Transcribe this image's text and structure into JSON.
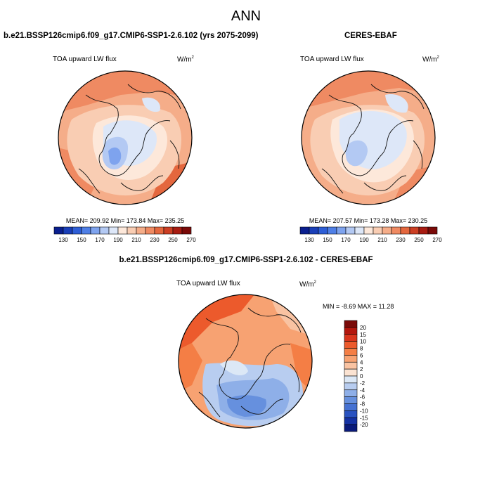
{
  "title": "ANN",
  "panels": {
    "model": {
      "title": "b.e21.BSSP126cmip6.f09_g17.CMIP6-SSP1-2.6.102 (yrs 2075-2099)",
      "variable": "TOA upward LW flux",
      "units_base": "W/m",
      "units_exp": "2",
      "stats": "MEAN= 209.92  Min= 173.84  Max= 235.25",
      "stats_values": {
        "mean": 209.92,
        "min": 173.84,
        "max": 235.25
      }
    },
    "obs": {
      "title": "CERES-EBAF",
      "variable": "TOA upward LW flux",
      "units_base": "W/m",
      "units_exp": "2",
      "stats": "MEAN= 207.57  Min= 173.28  Max= 230.25",
      "stats_values": {
        "mean": 207.57,
        "min": 173.28,
        "max": 230.25
      }
    },
    "diff": {
      "title": "b.e21.BSSP126cmip6.f09_g17.CMIP6-SSP1-2.6.102 - CERES-EBAF",
      "variable": "TOA upward LW flux",
      "units_base": "W/m",
      "units_exp": "2",
      "stats": "MIN =  -8.69 MAX =  11.28",
      "stats_values": {
        "min": -8.69,
        "max": 11.28
      }
    }
  },
  "colorbar_main": {
    "colors": [
      "#0a1f8f",
      "#1a3fb8",
      "#2e5ed6",
      "#4f7fe6",
      "#7ea3ee",
      "#b3c9f3",
      "#dde7f8",
      "#fde8da",
      "#f9cdb3",
      "#f5ad89",
      "#ef8a62",
      "#e4673e",
      "#cc3f24",
      "#a81c12",
      "#7a0a08"
    ],
    "tick_labels": [
      "130",
      "150",
      "170",
      "190",
      "210",
      "230",
      "250",
      "270"
    ]
  },
  "colorbar_diff": {
    "colors": [
      "#7a0a08",
      "#b3160d",
      "#d9341c",
      "#ec5a2c",
      "#f47e45",
      "#f7a272",
      "#f9c3a2",
      "#fbe3d2",
      "#dce8f6",
      "#b8cdf0",
      "#8eafe8",
      "#6690de",
      "#4571d2",
      "#2a53c0",
      "#1532a3",
      "#0a1a7a"
    ],
    "tick_labels": [
      "20",
      "15",
      "10",
      "8",
      "6",
      "4",
      "2",
      "0",
      "-2",
      "-4",
      "-6",
      "-8",
      "-10",
      "-15",
      "-20"
    ]
  }
}
